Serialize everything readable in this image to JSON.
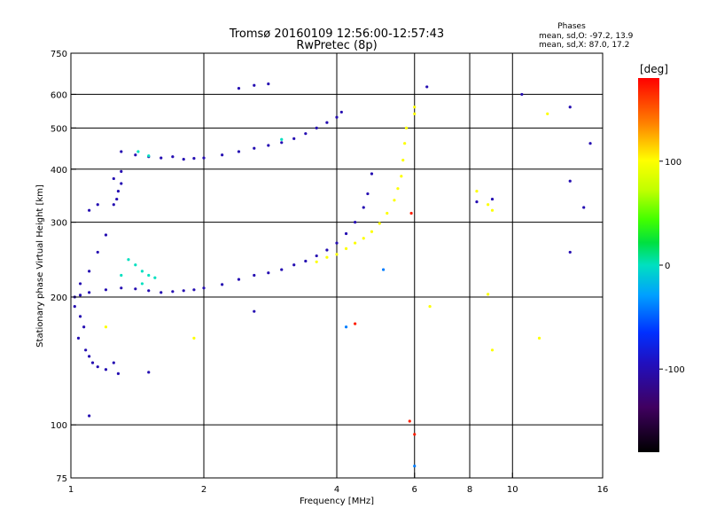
{
  "chart_data": {
    "type": "scatter",
    "title": "Tromsø 20160109 12:56:00-12:57:43",
    "subtitle": "RwPretec (8p)",
    "xlabel": "Frequency [MHz]",
    "ylabel": "Stationary phase Virtual Height [km]",
    "x_scale": "log",
    "y_scale": "log",
    "xlim": [
      1,
      16
    ],
    "ylim": [
      75,
      750
    ],
    "x_ticks": [
      1,
      2,
      4,
      6,
      8,
      10,
      16
    ],
    "x_tick_labels": [
      "1",
      "2",
      "4",
      "6",
      "8",
      "10",
      "16"
    ],
    "y_ticks": [
      75,
      100,
      200,
      300,
      400,
      500,
      600,
      750
    ],
    "y_tick_labels": [
      "75",
      "100",
      "200",
      "300",
      "400",
      "500",
      "600",
      "750"
    ],
    "x_grid": [
      2,
      4,
      6,
      8,
      10
    ],
    "y_grid": [
      100,
      200,
      300,
      400,
      500,
      600
    ],
    "grid": true,
    "info": {
      "header": "Phases",
      "line1": "mean, sd,O: -97.2, 13.9",
      "line2": "mean, sd,X:  87.0, 17.2"
    },
    "colorbar": {
      "label": "[deg]",
      "range": [
        -180,
        180
      ],
      "ticks": [
        100,
        0,
        -100
      ],
      "tick_labels": [
        "100",
        "0",
        "-100"
      ]
    },
    "series": [
      {
        "trace": "blue low F-trace",
        "phase_deg": -100,
        "points": [
          [
            1.02,
            200
          ],
          [
            1.05,
            202
          ],
          [
            1.1,
            205
          ],
          [
            1.2,
            208
          ],
          [
            1.3,
            210
          ],
          [
            1.4,
            209
          ],
          [
            1.5,
            207
          ],
          [
            1.6,
            205
          ],
          [
            1.7,
            206
          ],
          [
            1.8,
            207
          ],
          [
            1.9,
            208
          ],
          [
            2.0,
            210
          ],
          [
            2.2,
            214
          ],
          [
            2.4,
            220
          ],
          [
            2.6,
            225
          ],
          [
            2.8,
            228
          ],
          [
            3.0,
            232
          ],
          [
            3.2,
            238
          ],
          [
            3.4,
            243
          ],
          [
            3.6,
            250
          ],
          [
            3.8,
            258
          ],
          [
            4.0,
            268
          ],
          [
            4.2,
            282
          ],
          [
            4.4,
            300
          ],
          [
            4.6,
            325
          ],
          [
            4.7,
            350
          ],
          [
            4.8,
            390
          ]
        ]
      },
      {
        "trace": "blue upper trace",
        "phase_deg": -100,
        "points": [
          [
            1.3,
            440
          ],
          [
            1.4,
            432
          ],
          [
            1.5,
            428
          ],
          [
            1.6,
            425
          ],
          [
            1.7,
            428
          ],
          [
            1.8,
            422
          ],
          [
            1.9,
            424
          ],
          [
            2.0,
            425
          ],
          [
            2.2,
            432
          ],
          [
            2.4,
            440
          ],
          [
            2.6,
            448
          ],
          [
            2.8,
            455
          ],
          [
            3.0,
            462
          ],
          [
            3.2,
            472
          ],
          [
            3.4,
            485
          ],
          [
            3.6,
            500
          ],
          [
            3.8,
            515
          ],
          [
            4.0,
            530
          ],
          [
            4.1,
            545
          ]
        ]
      },
      {
        "trace": "yellow X-trace",
        "phase_deg": 100,
        "points": [
          [
            3.6,
            242
          ],
          [
            3.8,
            248
          ],
          [
            4.0,
            252
          ],
          [
            4.2,
            260
          ],
          [
            4.4,
            268
          ],
          [
            4.6,
            275
          ],
          [
            4.8,
            285
          ],
          [
            5.0,
            298
          ],
          [
            5.2,
            315
          ],
          [
            5.4,
            338
          ],
          [
            5.5,
            360
          ],
          [
            5.6,
            385
          ],
          [
            5.65,
            420
          ],
          [
            5.7,
            460
          ],
          [
            5.75,
            500
          ]
        ]
      },
      {
        "trace": "blue scattered low",
        "phase_deg": -100,
        "points": [
          [
            1.02,
            190
          ],
          [
            1.05,
            180
          ],
          [
            1.07,
            170
          ],
          [
            1.04,
            160
          ],
          [
            1.08,
            150
          ],
          [
            1.1,
            145
          ],
          [
            1.12,
            140
          ],
          [
            1.15,
            137
          ],
          [
            1.2,
            135
          ],
          [
            1.25,
            140
          ],
          [
            1.28,
            132
          ],
          [
            1.05,
            215
          ],
          [
            1.1,
            230
          ],
          [
            1.15,
            255
          ],
          [
            1.2,
            280
          ],
          [
            1.1,
            320
          ],
          [
            1.15,
            330
          ]
        ]
      },
      {
        "trace": "green scattered",
        "phase_deg": 0,
        "points": [
          [
            1.35,
            245
          ],
          [
            1.4,
            238
          ],
          [
            1.45,
            230
          ],
          [
            1.5,
            225
          ],
          [
            1.45,
            215
          ],
          [
            1.3,
            225
          ],
          [
            1.55,
            222
          ],
          [
            1.42,
            440
          ],
          [
            1.5,
            430
          ],
          [
            3.0,
            470
          ]
        ]
      },
      {
        "trace": "blue isolated",
        "phase_deg": -100,
        "points": [
          [
            1.25,
            330
          ],
          [
            1.27,
            340
          ],
          [
            1.28,
            355
          ],
          [
            1.3,
            370
          ],
          [
            1.25,
            380
          ],
          [
            1.3,
            395
          ],
          [
            2.4,
            620
          ],
          [
            2.6,
            630
          ],
          [
            2.8,
            635
          ],
          [
            6.4,
            625
          ],
          [
            8.3,
            335
          ],
          [
            9.0,
            340
          ],
          [
            13.5,
            375
          ],
          [
            14.5,
            325
          ],
          [
            13.5,
            255
          ],
          [
            13.5,
            560
          ],
          [
            15.0,
            460
          ],
          [
            1.1,
            105
          ],
          [
            1.5,
            133
          ],
          [
            2.6,
            185
          ],
          [
            10.5,
            600
          ]
        ]
      },
      {
        "trace": "yellow isolated",
        "phase_deg": 100,
        "points": [
          [
            8.3,
            355
          ],
          [
            8.8,
            330
          ],
          [
            9.0,
            320
          ],
          [
            9.0,
            150
          ],
          [
            8.8,
            203
          ],
          [
            11.5,
            160
          ],
          [
            12.0,
            540
          ],
          [
            6.5,
            190
          ],
          [
            6.0,
            540
          ],
          [
            6.0,
            560
          ],
          [
            1.2,
            170
          ],
          [
            1.9,
            160
          ]
        ]
      },
      {
        "trace": "red isolated",
        "phase_deg": 170,
        "points": [
          [
            6.0,
            95
          ],
          [
            5.85,
            102
          ],
          [
            4.4,
            173
          ],
          [
            5.9,
            315
          ]
        ]
      },
      {
        "trace": "cyan isolated",
        "phase_deg": -40,
        "points": [
          [
            6.0,
            80
          ],
          [
            5.1,
            232
          ],
          [
            4.2,
            170
          ]
        ]
      }
    ]
  }
}
